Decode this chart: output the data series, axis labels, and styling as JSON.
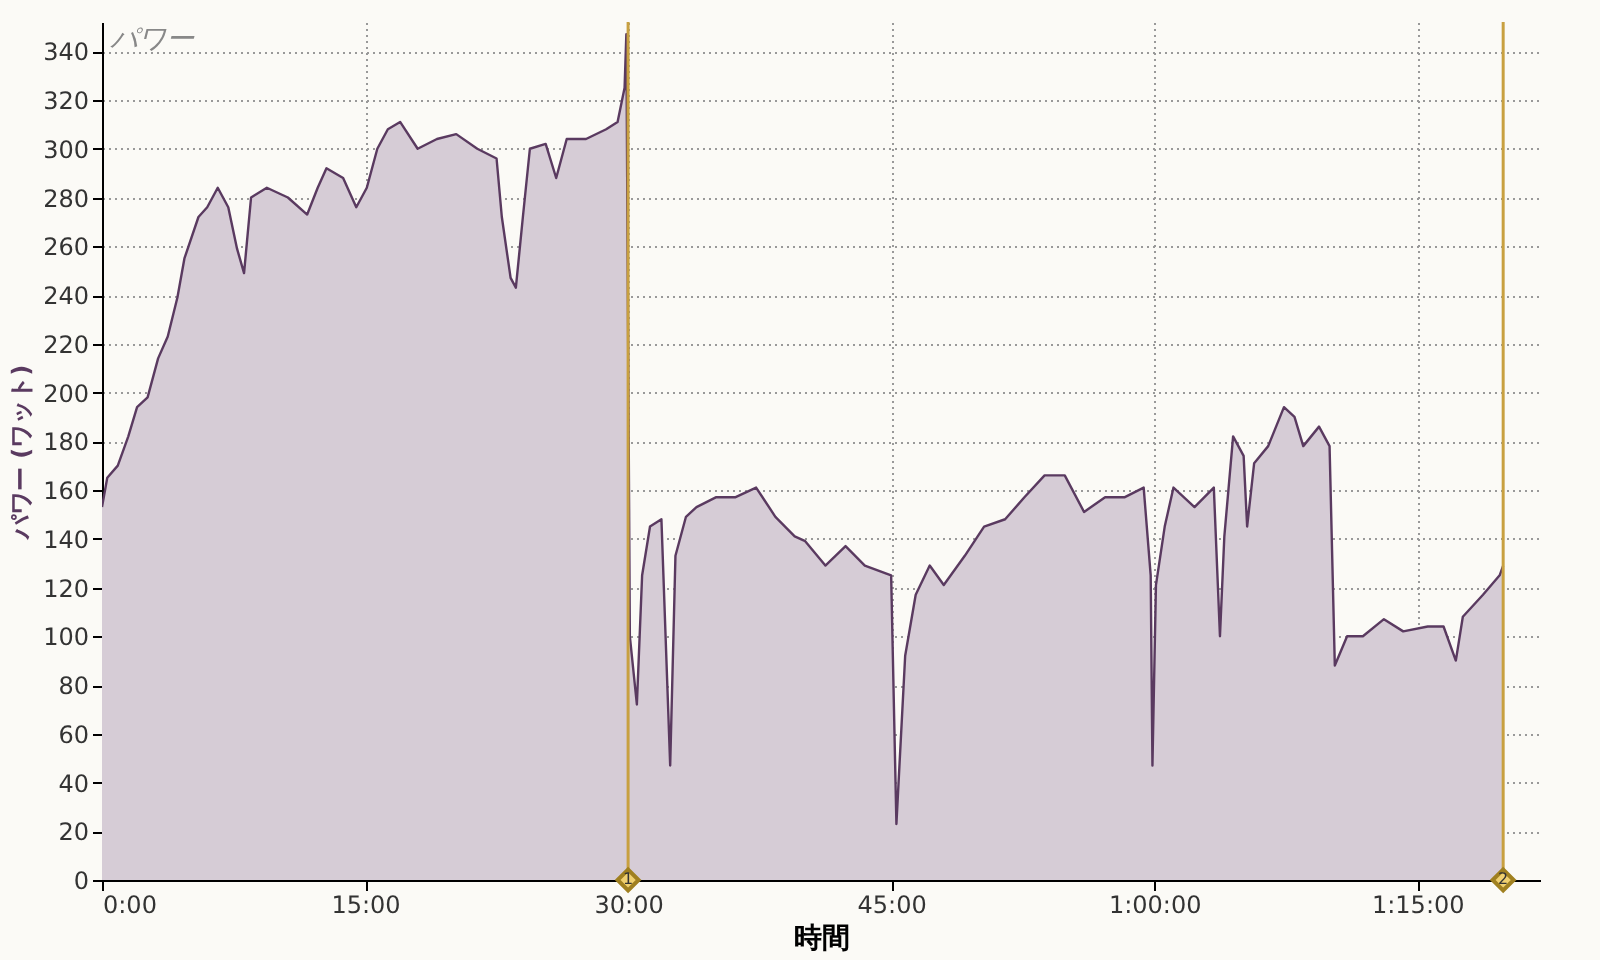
{
  "chart_data": {
    "type": "area",
    "title": "パワー",
    "xlabel": "時間",
    "ylabel": "パワー (ワット)",
    "xlim": [
      0,
      82
    ],
    "ylim": [
      0,
      352
    ],
    "xticks": [
      {
        "value": 0,
        "label": "0:00"
      },
      {
        "value": 15,
        "label": "15:00"
      },
      {
        "value": 30,
        "label": "30:00"
      },
      {
        "value": 45,
        "label": "45:00"
      },
      {
        "value": 60,
        "label": "1:00:00"
      },
      {
        "value": 75,
        "label": "1:15:00"
      }
    ],
    "yticks": [
      0,
      20,
      40,
      60,
      80,
      100,
      120,
      140,
      160,
      180,
      200,
      220,
      240,
      260,
      280,
      300,
      320,
      340
    ],
    "grid": true,
    "marker": "none",
    "line_style": "solid",
    "ref_lines": [
      {
        "axis": "x",
        "value": 30,
        "color": "#c8a040"
      },
      {
        "axis": "x",
        "value": 79.9,
        "color": "#c8a040"
      }
    ],
    "annotations": [
      {
        "text": "1",
        "x": 30,
        "y": 0
      },
      {
        "text": "2",
        "x": 79.9,
        "y": 0
      }
    ],
    "series": [
      {
        "color": "#5a3a60",
        "x": [
          0,
          0.3,
          0.9,
          1.5,
          2.0,
          2.6,
          3.2,
          3.75,
          4.3,
          4.7,
          5.5,
          6,
          6.6,
          7.2,
          7.7,
          8.1,
          8.5,
          9.4,
          10.6,
          11.7,
          12.3,
          12.8,
          13.75,
          14.5,
          15.1,
          15.7,
          16.3,
          17,
          18,
          19.1,
          20.2,
          21.4,
          22.5,
          22.8,
          23.3,
          23.6,
          24,
          24.4,
          25.3,
          25.9,
          26.5,
          27.6,
          28.75,
          29.4,
          29.8,
          29.9,
          30.1,
          30.5,
          30.8,
          31.25,
          31.9,
          32.4,
          32.7,
          33.3,
          33.9,
          35,
          36.1,
          37.3,
          38.4,
          39.5,
          40.1,
          41.25,
          42.4,
          43.5,
          45,
          45.3,
          45.8,
          46.4,
          47.2,
          48,
          49.2,
          50.3,
          51.5,
          52.6,
          53.75,
          54.9,
          56,
          57.2,
          58.3,
          59.4,
          59.8,
          59.9,
          60.1,
          60.6,
          61.1,
          62.3,
          63.4,
          63.75,
          64,
          64.5,
          65.1,
          65.3,
          65.7,
          66.5,
          67.4,
          68,
          68.5,
          69.4,
          70,
          70.3,
          71,
          71.9,
          73.1,
          74.2,
          75.6,
          76.5,
          77.2,
          77.6,
          78.75,
          79.7,
          79.9
        ],
        "values": [
          153,
          165,
          170,
          182,
          194,
          198,
          214,
          223,
          239,
          255,
          272,
          276,
          284,
          276,
          259,
          249,
          280,
          284,
          280,
          273,
          284,
          292,
          288,
          276,
          284,
          300,
          308,
          311,
          300,
          304,
          306,
          300,
          296,
          272,
          247,
          243,
          272,
          300,
          302,
          288,
          304,
          304,
          308,
          311,
          325,
          347,
          100,
          72,
          125,
          145,
          148,
          47,
          133,
          149,
          153,
          157,
          157,
          161,
          149,
          141,
          139,
          129,
          137,
          129,
          125,
          23,
          92,
          117,
          129,
          121,
          133,
          145,
          148,
          157,
          166,
          166,
          151,
          157,
          157,
          161,
          125,
          47,
          121,
          145,
          161,
          153,
          161,
          100,
          141,
          182,
          174,
          145,
          171,
          178,
          194,
          190,
          178,
          186,
          178,
          88,
          100,
          100,
          107,
          102,
          104,
          104,
          90,
          108,
          117,
          125,
          129
        ]
      }
    ]
  }
}
